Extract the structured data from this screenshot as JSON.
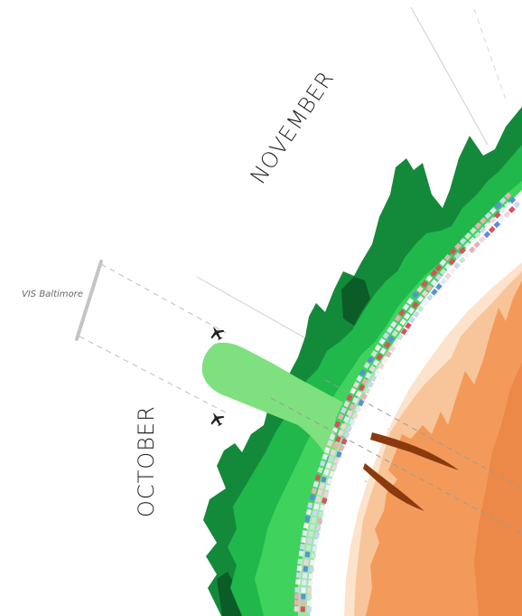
{
  "labels": {
    "november": "NOVEMBER",
    "october": "OCTOBER",
    "event": "VIS Baltimore"
  },
  "icons": {
    "flight_out": "airplane-icon",
    "flight_back": "airplane-icon"
  },
  "colors": {
    "green_darkest": "#0b5c27",
    "green_dark": "#138a3a",
    "green_mid": "#20b84b",
    "green_light": "#3fd35e",
    "green_pale": "#9be8a6",
    "trip_band": "#7fe07f",
    "orange_dark": "#8a3a0e",
    "orange_mid": "#f39a5a",
    "orange_light": "#f8c59a",
    "orange_pale": "#fde3cc",
    "heat_red": "#d9515b",
    "heat_blue": "#5b8fd9"
  }
}
